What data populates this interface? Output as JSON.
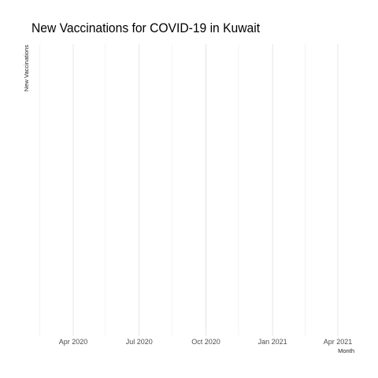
{
  "chart_data": {
    "type": "line",
    "title": "New Vaccinations for COVID-19 in Kuwait",
    "xlabel": "Month",
    "ylabel": "New Vaccinations",
    "x_tick_labels": [
      "Apr 2020",
      "Jul 2020",
      "Oct 2020",
      "Jan 2021",
      "Apr 2021"
    ],
    "x_tick_dates": [
      "2020-04-01",
      "2020-07-01",
      "2020-10-01",
      "2021-01-01",
      "2021-04-01"
    ],
    "x_minor_dates": [
      "2020-02-15",
      "2020-05-15",
      "2020-08-15",
      "2020-11-15",
      "2021-02-15"
    ],
    "xlim": [
      "2020-02-15",
      "2021-04-01"
    ],
    "series": [],
    "grid": true,
    "legend": "none"
  }
}
